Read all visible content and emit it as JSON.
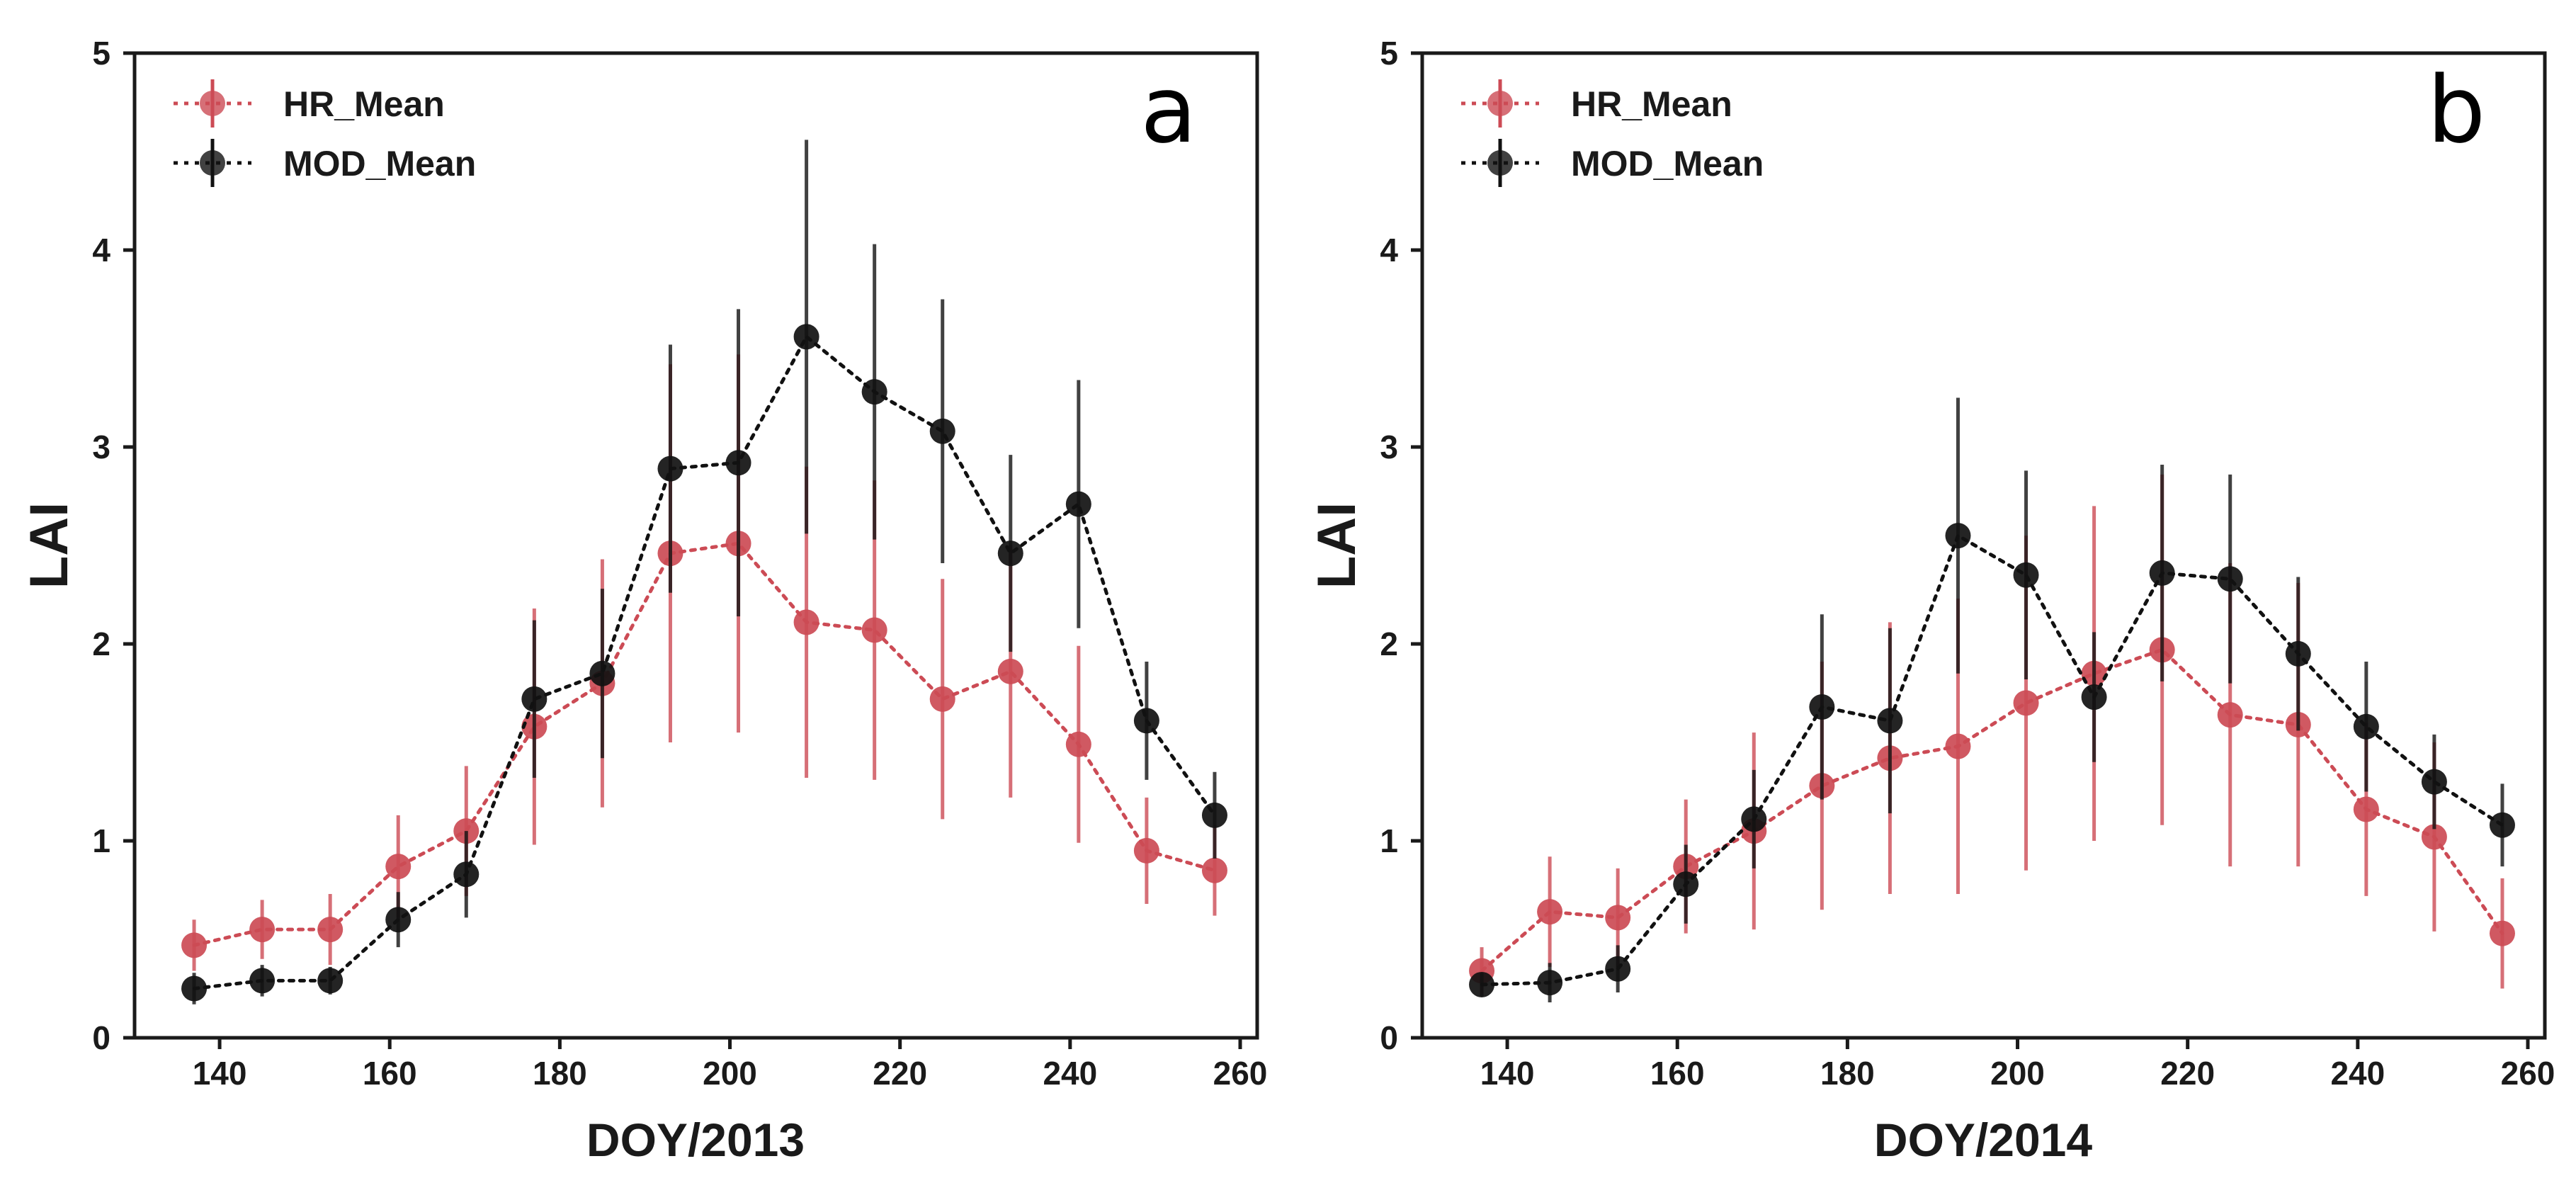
{
  "chart_data": [
    {
      "type": "line",
      "panel": "a",
      "xlabel": "DOY/2013",
      "ylabel": "LAI",
      "xlim": [
        130,
        262
      ],
      "ylim": [
        0,
        5
      ],
      "xticks": [
        140,
        160,
        180,
        200,
        220,
        240,
        260
      ],
      "yticks": [
        0,
        1,
        2,
        3,
        4,
        5
      ],
      "legend_position": "top-left",
      "series": [
        {
          "name": "HR_Mean",
          "color": "#cc4b55",
          "x": [
            137,
            145,
            153,
            161,
            169,
            177,
            185,
            193,
            201,
            209,
            217,
            225,
            233,
            241,
            249,
            257
          ],
          "y": [
            0.47,
            0.55,
            0.55,
            0.87,
            1.05,
            1.58,
            1.8,
            2.46,
            2.51,
            2.11,
            2.07,
            1.72,
            1.86,
            1.49,
            0.95,
            0.85
          ],
          "err": [
            0.13,
            0.15,
            0.18,
            0.26,
            0.33,
            0.6,
            0.63,
            0.96,
            0.96,
            0.79,
            0.76,
            0.61,
            0.64,
            0.5,
            0.27,
            0.23
          ]
        },
        {
          "name": "MOD_Mean",
          "color": "#111111",
          "x": [
            137,
            145,
            153,
            161,
            169,
            177,
            185,
            193,
            201,
            209,
            217,
            225,
            233,
            241,
            249,
            257
          ],
          "y": [
            0.25,
            0.29,
            0.29,
            0.6,
            0.83,
            1.72,
            1.85,
            2.89,
            2.92,
            3.56,
            3.28,
            3.08,
            2.46,
            2.71,
            1.61,
            1.13
          ],
          "err": [
            0.08,
            0.08,
            0.07,
            0.14,
            0.22,
            0.4,
            0.43,
            0.63,
            0.78,
            1.0,
            0.75,
            0.67,
            0.5,
            0.63,
            0.3,
            0.22
          ]
        }
      ]
    },
    {
      "type": "line",
      "panel": "b",
      "xlabel": "DOY/2014",
      "ylabel": "LAI",
      "xlim": [
        130,
        262
      ],
      "ylim": [
        0,
        5
      ],
      "xticks": [
        140,
        160,
        180,
        200,
        220,
        240,
        260
      ],
      "yticks": [
        0,
        1,
        2,
        3,
        4,
        5
      ],
      "legend_position": "top-left",
      "series": [
        {
          "name": "HR_Mean",
          "color": "#cc4b55",
          "x": [
            137,
            145,
            153,
            161,
            169,
            177,
            185,
            193,
            201,
            209,
            217,
            225,
            233,
            241,
            249,
            257
          ],
          "y": [
            0.34,
            0.64,
            0.61,
            0.87,
            1.05,
            1.28,
            1.42,
            1.48,
            1.7,
            1.85,
            1.97,
            1.64,
            1.59,
            1.16,
            1.02,
            0.53
          ],
          "err": [
            0.12,
            0.28,
            0.25,
            0.34,
            0.5,
            0.63,
            0.69,
            0.75,
            0.85,
            0.85,
            0.89,
            0.77,
            0.72,
            0.44,
            0.48,
            0.28
          ]
        },
        {
          "name": "MOD_Mean",
          "color": "#111111",
          "x": [
            137,
            145,
            153,
            161,
            169,
            177,
            185,
            193,
            201,
            209,
            217,
            225,
            233,
            241,
            249,
            257
          ],
          "y": [
            0.27,
            0.28,
            0.35,
            0.78,
            1.11,
            1.68,
            1.61,
            2.55,
            2.35,
            1.73,
            2.36,
            2.33,
            1.95,
            1.58,
            1.3,
            1.08
          ],
          "err": [
            0.06,
            0.1,
            0.12,
            0.2,
            0.25,
            0.47,
            0.47,
            0.7,
            0.53,
            0.33,
            0.55,
            0.53,
            0.39,
            0.33,
            0.24,
            0.21
          ]
        }
      ]
    }
  ]
}
